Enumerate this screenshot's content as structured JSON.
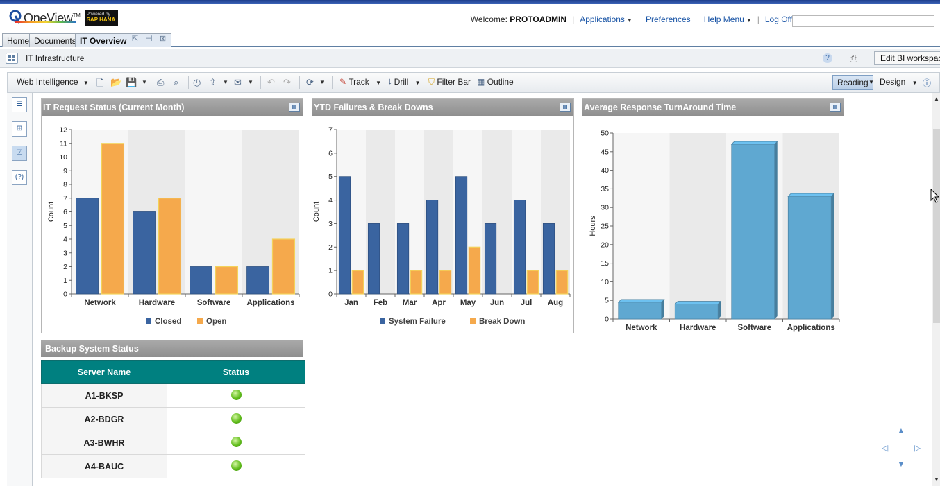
{
  "header": {
    "brand": "OneView",
    "brand_sup": "TM",
    "badge_line1": "Powered by",
    "badge_line2": "SAP HANA",
    "welcome_label": "Welcome:",
    "user": "PROTOADMIN",
    "nav": [
      "Applications",
      "Preferences",
      "Help Menu",
      "Log Off"
    ],
    "search_placeholder": ""
  },
  "tabs": [
    {
      "label": "Home"
    },
    {
      "label": "Documents"
    },
    {
      "label": "IT Overview",
      "active": true
    }
  ],
  "breadcrumb": {
    "title": "IT Infrastructure",
    "edit_button": "Edit BI workspace"
  },
  "toolbar": {
    "web_intelligence": "Web Intelligence",
    "track": "Track",
    "drill": "Drill",
    "filter_bar": "Filter Bar",
    "outline": "Outline",
    "reading": "Reading",
    "design": "Design"
  },
  "panels": {
    "p1": {
      "title": "IT Request Status (Current Month)"
    },
    "p2": {
      "title": "YTD Failures & Break Downs"
    },
    "p3": {
      "title": "Average Response TurnAround Time"
    }
  },
  "chart_data": [
    {
      "type": "bar",
      "title": "IT Request Status (Current Month)",
      "categories": [
        "Network",
        "Hardware",
        "Software",
        "Applications"
      ],
      "series": [
        {
          "name": "Closed",
          "values": [
            7,
            6,
            2,
            2
          ],
          "color": "#3a64a0"
        },
        {
          "name": "Open",
          "values": [
            11,
            7,
            2,
            4
          ],
          "color": "#f5a94c"
        }
      ],
      "ylabel": "Count",
      "ylim": [
        0,
        12
      ],
      "yticks": [
        0,
        1,
        2,
        3,
        4,
        5,
        6,
        7,
        8,
        9,
        10,
        11,
        12
      ],
      "legend": "bottom"
    },
    {
      "type": "bar",
      "title": "YTD Failures & Break Downs",
      "categories": [
        "Jan",
        "Feb",
        "Mar",
        "Apr",
        "May",
        "Jun",
        "Jul",
        "Aug"
      ],
      "series": [
        {
          "name": "System Failure",
          "values": [
            5,
            3,
            3,
            4,
            5,
            3,
            4,
            3
          ],
          "color": "#3a64a0"
        },
        {
          "name": "Break Down",
          "values": [
            1,
            0,
            1,
            1,
            2,
            0,
            1,
            1
          ],
          "color": "#f5a94c"
        }
      ],
      "ylabel": "Count",
      "ylim": [
        0,
        7
      ],
      "yticks": [
        0,
        1,
        2,
        3,
        4,
        5,
        6,
        7
      ],
      "legend": "bottom"
    },
    {
      "type": "bar",
      "title": "Average Response TurnAround Time",
      "categories": [
        "Network",
        "Hardware",
        "Software",
        "Applications"
      ],
      "series": [
        {
          "values": [
            4.5,
            4,
            47,
            33
          ],
          "color": "#5fa8d1"
        }
      ],
      "ylabel": "Hours",
      "ylim": [
        0,
        50
      ],
      "yticks": [
        0,
        5,
        10,
        15,
        20,
        25,
        30,
        35,
        40,
        45,
        50
      ]
    }
  ],
  "backup": {
    "title": "Backup System Status",
    "columns": [
      "Server Name",
      "Status"
    ],
    "rows": [
      {
        "server": "A1-BKSP",
        "status": "green"
      },
      {
        "server": "A2-BDGR",
        "status": "green"
      },
      {
        "server": "A3-BWHR",
        "status": "green"
      },
      {
        "server": "A4-BAUC",
        "status": "green"
      }
    ]
  }
}
